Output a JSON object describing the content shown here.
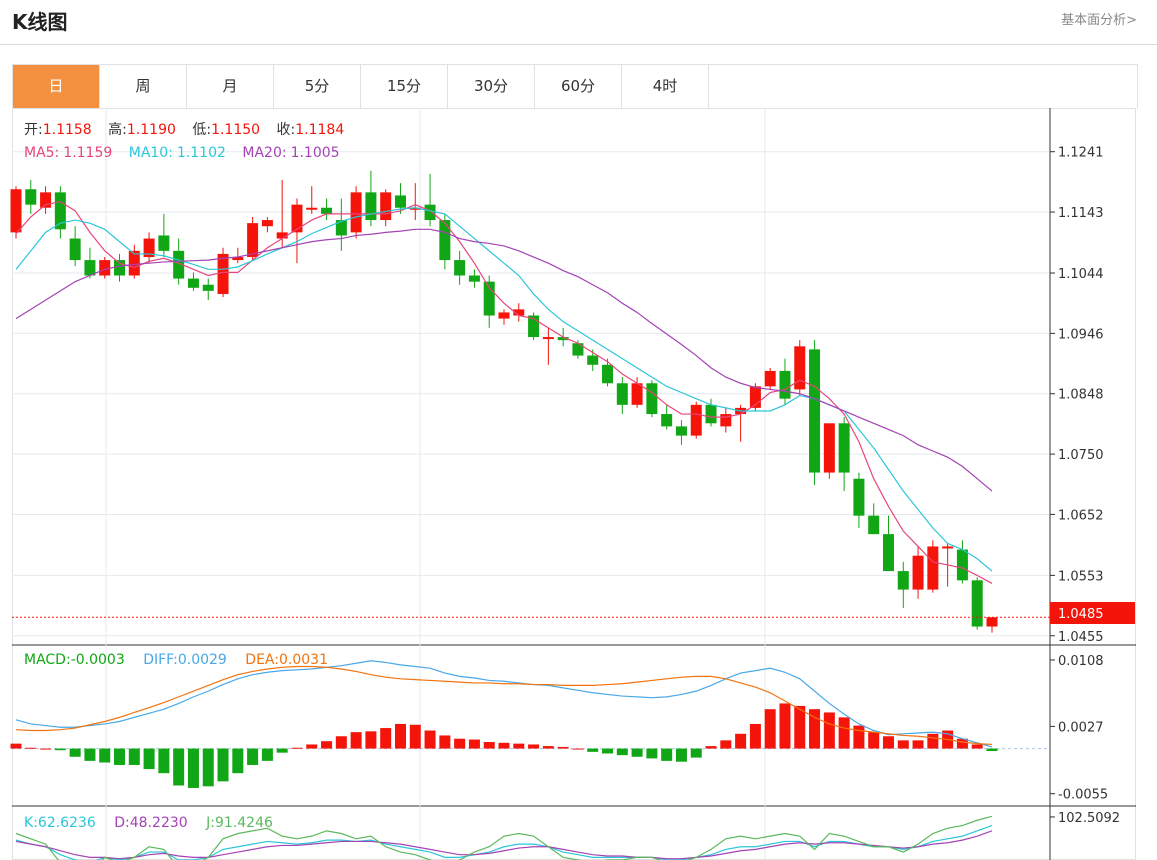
{
  "header": {
    "title": "K线图",
    "fundamental_link": "基本面分析>"
  },
  "tabs": [
    {
      "label": "日",
      "active": true
    },
    {
      "label": "周",
      "active": false
    },
    {
      "label": "月",
      "active": false
    },
    {
      "label": "5分",
      "active": false
    },
    {
      "label": "15分",
      "active": false
    },
    {
      "label": "30分",
      "active": false
    },
    {
      "label": "60分",
      "active": false
    },
    {
      "label": "4时",
      "active": false
    }
  ],
  "colors": {
    "up": "#f5140a",
    "down": "#11a615",
    "ma5": "#e8457d",
    "ma10": "#2bc6d8",
    "ma20": "#a443b5",
    "diff": "#48a8e8",
    "dea": "#f2730f",
    "kdj_k": "#2bc6d8",
    "kdj_d": "#a443b5",
    "kdj_j": "#5cb85c",
    "accent": "#f39140"
  },
  "ohlc_info": {
    "open_label": "开:",
    "open": "1.1158",
    "high_label": "高:",
    "high": "1.1190",
    "low_label": "低:",
    "low": "1.1150",
    "close_label": "收:",
    "close": "1.1184"
  },
  "ma_info": {
    "ma5_label": "MA5:",
    "ma5": "1.1159",
    "ma10_label": "MA10:",
    "ma10": "1.1102",
    "ma20_label": "MA20:",
    "ma20": "1.1005"
  },
  "macd_info": {
    "macd_label": "MACD:",
    "macd": "-0.0003",
    "diff_label": "DIFF:",
    "diff": "0.0029",
    "dea_label": "DEA:",
    "dea": "0.0031"
  },
  "kdj_info": {
    "k_label": "K:",
    "k": "62.6236",
    "d_label": "D:",
    "d": "48.2230",
    "j_label": "J:",
    "j": "91.4246"
  },
  "current_price_label": "1.0485",
  "chart_data": [
    {
      "type": "candlestick",
      "y_ticks": [
        "1.1241",
        "1.1143",
        "1.1044",
        "1.0946",
        "1.0848",
        "1.0750",
        "1.0652",
        "1.0553",
        "1.0455"
      ],
      "ylim": [
        1.044,
        1.126
      ],
      "current_price": 1.0485,
      "candles": [
        [
          1.111,
          1.1185,
          1.11,
          1.118
        ],
        [
          1.118,
          1.1195,
          1.114,
          1.1155
        ],
        [
          1.115,
          1.1185,
          1.114,
          1.1175
        ],
        [
          1.1175,
          1.1185,
          1.11,
          1.1115
        ],
        [
          1.11,
          1.112,
          1.1055,
          1.1065
        ],
        [
          1.1065,
          1.1085,
          1.1035,
          1.104
        ],
        [
          1.104,
          1.107,
          1.1035,
          1.1065
        ],
        [
          1.1065,
          1.1075,
          1.103,
          1.104
        ],
        [
          1.104,
          1.109,
          1.1035,
          1.108
        ],
        [
          1.107,
          1.111,
          1.106,
          1.11
        ],
        [
          1.1105,
          1.114,
          1.107,
          1.108
        ],
        [
          1.108,
          1.11,
          1.1025,
          1.1035
        ],
        [
          1.1035,
          1.1045,
          1.1015,
          1.102
        ],
        [
          1.1025,
          1.1035,
          1.1,
          1.1015
        ],
        [
          1.101,
          1.1085,
          1.1005,
          1.1075
        ],
        [
          1.1065,
          1.1085,
          1.106,
          1.107
        ],
        [
          1.107,
          1.1135,
          1.1065,
          1.1125
        ],
        [
          1.112,
          1.1135,
          1.111,
          1.113
        ],
        [
          1.11,
          1.1195,
          1.1085,
          1.111
        ],
        [
          1.111,
          1.1165,
          1.106,
          1.1155
        ],
        [
          1.115,
          1.1185,
          1.114,
          1.115
        ],
        [
          1.115,
          1.1165,
          1.113,
          1.114
        ],
        [
          1.113,
          1.1165,
          1.108,
          1.1105
        ],
        [
          1.111,
          1.1185,
          1.11,
          1.1175
        ],
        [
          1.1175,
          1.121,
          1.112,
          1.113
        ],
        [
          1.113,
          1.118,
          1.112,
          1.1175
        ],
        [
          1.117,
          1.119,
          1.114,
          1.115
        ],
        [
          1.115,
          1.119,
          1.113,
          1.115
        ],
        [
          1.1155,
          1.1205,
          1.112,
          1.113
        ],
        [
          1.113,
          1.114,
          1.105,
          1.1065
        ],
        [
          1.1065,
          1.108,
          1.1025,
          1.104
        ],
        [
          1.104,
          1.105,
          1.102,
          1.103
        ],
        [
          1.103,
          1.104,
          1.0955,
          1.0975
        ],
        [
          1.097,
          1.0985,
          1.096,
          1.098
        ],
        [
          1.0975,
          1.0995,
          1.0965,
          1.0985
        ],
        [
          1.0975,
          1.098,
          1.0935,
          1.094
        ],
        [
          1.094,
          1.0955,
          1.0895,
          1.094
        ],
        [
          1.094,
          1.0955,
          1.0925,
          1.0935
        ],
        [
          1.093,
          1.0935,
          1.0905,
          1.091
        ],
        [
          1.091,
          1.092,
          1.0885,
          1.0895
        ],
        [
          1.0895,
          1.0905,
          1.086,
          1.0865
        ],
        [
          1.0865,
          1.0875,
          1.0815,
          1.083
        ],
        [
          1.083,
          1.0875,
          1.0825,
          1.0865
        ],
        [
          1.0865,
          1.087,
          1.081,
          1.0815
        ],
        [
          1.0815,
          1.083,
          1.079,
          1.0795
        ],
        [
          1.0795,
          1.0805,
          1.0765,
          1.078
        ],
        [
          1.078,
          1.0835,
          1.0775,
          1.083
        ],
        [
          1.083,
          1.084,
          1.0795,
          1.08
        ],
        [
          1.0795,
          1.0825,
          1.0785,
          1.0815
        ],
        [
          1.0815,
          1.083,
          1.077,
          1.0825
        ],
        [
          1.0825,
          1.0865,
          1.082,
          1.086
        ],
        [
          1.086,
          1.089,
          1.0855,
          1.0885
        ],
        [
          1.0885,
          1.0905,
          1.083,
          1.084
        ],
        [
          1.0855,
          1.0935,
          1.0845,
          1.0925
        ],
        [
          1.092,
          1.0935,
          1.07,
          1.072
        ],
        [
          1.072,
          1.08,
          1.071,
          1.08
        ],
        [
          1.08,
          1.081,
          1.069,
          1.072
        ],
        [
          1.071,
          1.072,
          1.063,
          1.065
        ],
        [
          1.065,
          1.067,
          1.062,
          1.062
        ],
        [
          1.062,
          1.065,
          1.056,
          1.056
        ],
        [
          1.056,
          1.0575,
          1.05,
          1.053
        ],
        [
          1.053,
          1.06,
          1.0515,
          1.0585
        ],
        [
          1.053,
          1.061,
          1.0525,
          1.06
        ],
        [
          1.06,
          1.0605,
          1.0535,
          1.06
        ],
        [
          1.0595,
          1.061,
          1.054,
          1.0545
        ],
        [
          1.0545,
          1.055,
          1.0465,
          1.047
        ],
        [
          1.047,
          1.0485,
          1.046,
          1.0485
        ]
      ],
      "ma5": [
        1.1108,
        1.1135,
        1.1155,
        1.116,
        1.1145,
        1.111,
        1.108,
        1.106,
        1.1053,
        1.1063,
        1.1068,
        1.106,
        1.105,
        1.104,
        1.1045,
        1.1045,
        1.1065,
        1.1085,
        1.11,
        1.1115,
        1.113,
        1.114,
        1.114,
        1.114,
        1.114,
        1.114,
        1.1145,
        1.1155,
        1.1145,
        1.1125,
        1.1095,
        1.106,
        1.102,
        1.0995,
        1.0975,
        1.097,
        1.0955,
        1.094,
        1.093,
        1.0915,
        1.09,
        1.088,
        1.0865,
        1.085,
        1.083,
        1.0815,
        1.0815,
        1.081,
        1.081,
        1.0815,
        1.083,
        1.085,
        1.0855,
        1.087,
        1.086,
        1.084,
        1.0815,
        1.077,
        1.071,
        1.0665,
        1.0625,
        1.06,
        1.0575,
        1.057,
        1.0565,
        1.0553,
        1.054
      ],
      "ma10": [
        1.105,
        1.108,
        1.111,
        1.1125,
        1.113,
        1.1125,
        1.1115,
        1.1095,
        1.1075,
        1.1075,
        1.1072,
        1.1065,
        1.1058,
        1.105,
        1.105,
        1.1054,
        1.1064,
        1.1075,
        1.1085,
        1.1095,
        1.1108,
        1.1118,
        1.1128,
        1.1135,
        1.114,
        1.1144,
        1.1148,
        1.115,
        1.1145,
        1.114,
        1.112,
        1.11,
        1.108,
        1.106,
        1.104,
        1.101,
        1.0985,
        1.0965,
        1.095,
        1.0935,
        1.092,
        1.0905,
        1.089,
        1.0875,
        1.086,
        1.085,
        1.084,
        1.083,
        1.0825,
        1.082,
        1.082,
        1.082,
        1.083,
        1.0845,
        1.084,
        1.083,
        1.082,
        1.079,
        1.076,
        1.0725,
        1.069,
        1.066,
        1.063,
        1.0605,
        1.0595,
        1.058,
        1.056
      ],
      "ma20": [
        1.097,
        1.0985,
        1.1,
        1.1015,
        1.103,
        1.104,
        1.105,
        1.1055,
        1.1058,
        1.106,
        1.1062,
        1.1063,
        1.1064,
        1.1065,
        1.1068,
        1.107,
        1.1075,
        1.108,
        1.1085,
        1.109,
        1.1095,
        1.1098,
        1.11,
        1.1105,
        1.1107,
        1.111,
        1.1112,
        1.1115,
        1.1115,
        1.111,
        1.11,
        1.1095,
        1.1092,
        1.1088,
        1.108,
        1.107,
        1.106,
        1.1048,
        1.1038,
        1.1025,
        1.1012,
        1.0995,
        1.098,
        1.0962,
        1.0945,
        1.0928,
        1.091,
        1.089,
        1.0875,
        1.0865,
        1.0858,
        1.0855,
        1.0852,
        1.0848,
        1.084,
        1.083,
        1.082,
        1.081,
        1.08,
        1.079,
        1.078,
        1.0765,
        1.0755,
        1.0745,
        1.073,
        1.071,
        1.069
      ]
    },
    {
      "type": "bar",
      "name": "MACD",
      "y_ticks": [
        "0.0108",
        "0.0027",
        "-0.0055"
      ],
      "ylim": [
        -0.007,
        0.0125
      ],
      "histogram": [
        0.0006,
        0.0001,
        0.0,
        -0.0002,
        -0.001,
        -0.0015,
        -0.0017,
        -0.002,
        -0.002,
        -0.0025,
        -0.003,
        -0.0045,
        -0.0048,
        -0.0046,
        -0.004,
        -0.003,
        -0.002,
        -0.0015,
        -0.0005,
        0.0001,
        0.0005,
        0.0009,
        0.0015,
        0.002,
        0.0021,
        0.0025,
        0.003,
        0.0029,
        0.0022,
        0.0016,
        0.0012,
        0.0011,
        0.0008,
        0.0007,
        0.0006,
        0.0005,
        0.0003,
        0.0002,
        0.0,
        -0.0004,
        -0.0006,
        -0.0008,
        -0.001,
        -0.0012,
        -0.0015,
        -0.0016,
        -0.0011,
        0.0003,
        0.001,
        0.0018,
        0.003,
        0.0048,
        0.0055,
        0.0052,
        0.0048,
        0.0044,
        0.0038,
        0.0028,
        0.002,
        0.0015,
        0.001,
        0.001,
        0.0018,
        0.0022,
        0.0012,
        0.0005,
        -0.0003
      ],
      "diff": [
        0.0035,
        0.003,
        0.0028,
        0.0026,
        0.0026,
        0.0028,
        0.003,
        0.0033,
        0.0038,
        0.0043,
        0.0048,
        0.0055,
        0.0063,
        0.007,
        0.0078,
        0.0085,
        0.009,
        0.0093,
        0.0095,
        0.0096,
        0.0097,
        0.0099,
        0.0101,
        0.0104,
        0.0107,
        0.0105,
        0.0102,
        0.01,
        0.0098,
        0.0092,
        0.0088,
        0.0086,
        0.0083,
        0.0082,
        0.008,
        0.0078,
        0.0077,
        0.0074,
        0.0071,
        0.0068,
        0.0066,
        0.0064,
        0.0063,
        0.0062,
        0.0063,
        0.0066,
        0.007,
        0.0077,
        0.0085,
        0.0092,
        0.0095,
        0.0098,
        0.0093,
        0.0085,
        0.007,
        0.0055,
        0.0042,
        0.003,
        0.0022,
        0.0017,
        0.0018,
        0.0019,
        0.002,
        0.0018,
        0.0012,
        0.0007,
        0.0002
      ],
      "dea": [
        0.0023,
        0.0022,
        0.0022,
        0.0023,
        0.0025,
        0.0029,
        0.0033,
        0.0038,
        0.0044,
        0.005,
        0.0056,
        0.0063,
        0.007,
        0.0077,
        0.0084,
        0.009,
        0.0094,
        0.0097,
        0.0099,
        0.01,
        0.01,
        0.0099,
        0.0097,
        0.0094,
        0.009,
        0.0087,
        0.0085,
        0.0084,
        0.0083,
        0.0082,
        0.0081,
        0.008,
        0.008,
        0.0079,
        0.0079,
        0.0078,
        0.0078,
        0.0077,
        0.0077,
        0.0077,
        0.0078,
        0.0079,
        0.0081,
        0.0083,
        0.0085,
        0.0087,
        0.0088,
        0.0088,
        0.0085,
        0.008,
        0.0075,
        0.0068,
        0.0058,
        0.0048,
        0.0038,
        0.003,
        0.0025,
        0.0022,
        0.002,
        0.0018,
        0.0016,
        0.0015,
        0.0013,
        0.0011,
        0.0008,
        0.0006,
        0.0005
      ]
    },
    {
      "type": "line",
      "name": "KDJ",
      "y_ticks": [
        "102.5092"
      ],
      "ylim": [
        70,
        110
      ],
      "k": [
        85,
        82,
        80,
        74,
        70,
        68,
        72,
        70,
        72,
        76,
        76,
        70,
        70,
        72,
        78,
        80,
        82,
        84,
        83,
        82,
        83,
        85,
        85,
        84,
        85,
        82,
        80,
        78,
        76,
        72,
        72,
        74,
        76,
        80,
        82,
        82,
        80,
        76,
        74,
        72,
        72,
        72,
        72,
        72,
        70,
        70,
        72,
        74,
        78,
        80,
        80,
        82,
        84,
        84,
        80,
        84,
        84,
        82,
        80,
        80,
        78,
        80,
        84,
        86,
        88,
        92,
        96
      ],
      "d": [
        84,
        82,
        80,
        77,
        74,
        72,
        72,
        71,
        72,
        74,
        75,
        73,
        72,
        72,
        74,
        76,
        78,
        80,
        81,
        81,
        82,
        83,
        84,
        84,
        84,
        83,
        82,
        80,
        78,
        76,
        74,
        74,
        75,
        77,
        79,
        80,
        80,
        78,
        76,
        74,
        73,
        73,
        72,
        72,
        71,
        71,
        72,
        73,
        75,
        77,
        78,
        80,
        82,
        83,
        82,
        83,
        83,
        82,
        81,
        80,
        79,
        80,
        82,
        83,
        85,
        88,
        92
      ],
      "j": [
        90,
        86,
        82,
        68,
        62,
        60,
        72,
        68,
        72,
        80,
        78,
        64,
        66,
        72,
        86,
        90,
        92,
        94,
        88,
        86,
        88,
        92,
        90,
        86,
        88,
        80,
        76,
        74,
        70,
        66,
        70,
        76,
        80,
        88,
        90,
        88,
        80,
        72,
        70,
        68,
        70,
        70,
        72,
        72,
        68,
        68,
        72,
        78,
        86,
        88,
        86,
        88,
        90,
        88,
        78,
        90,
        88,
        84,
        80,
        80,
        76,
        82,
        90,
        94,
        96,
        100,
        103
      ]
    }
  ]
}
